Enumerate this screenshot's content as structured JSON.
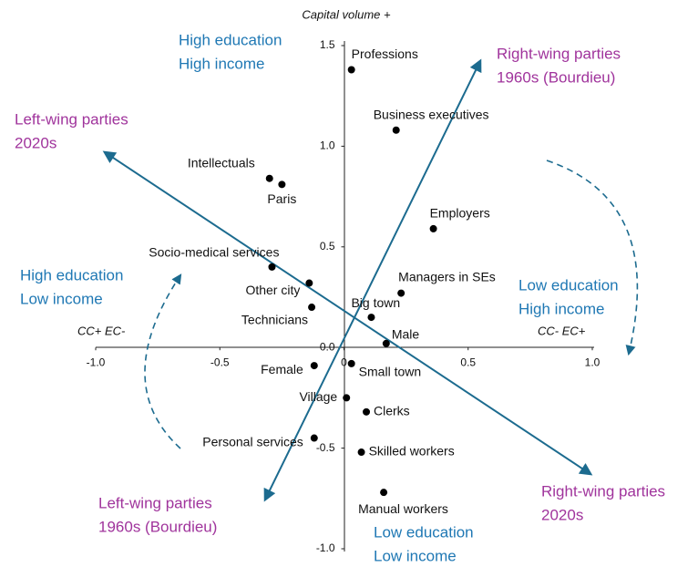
{
  "chart_data": {
    "type": "scatter",
    "y_label": "Capital volume +",
    "x_label_left": "CC+ EC-",
    "x_label_right": "CC- EC+",
    "labels": [
      "Professions",
      "Business executives",
      "Intellectuals",
      "Paris",
      "Employers",
      "Socio-medical services",
      "Other city",
      "Managers in SEs",
      "Technicians",
      "Big town",
      "Male",
      "Female",
      "Small town",
      "Village",
      "Clerks",
      "Personal services",
      "Skilled workers",
      "Manual workers"
    ],
    "x": [
      0.03,
      0.21,
      -0.3,
      -0.25,
      0.36,
      -0.29,
      -0.14,
      0.23,
      -0.13,
      0.11,
      0.17,
      -0.12,
      0.03,
      0.01,
      0.09,
      -0.12,
      0.07,
      0.16
    ],
    "values": [
      1.38,
      1.08,
      0.84,
      0.81,
      0.59,
      0.4,
      0.32,
      0.27,
      0.2,
      0.15,
      0.02,
      -0.09,
      -0.08,
      -0.25,
      -0.32,
      -0.45,
      -0.52,
      -0.72
    ],
    "color": "#000000",
    "xlim": [
      -1.0,
      1.0
    ],
    "ylim": [
      -1.0,
      1.5
    ],
    "xticks": [
      {
        "value": -1,
        "label": "-1.0"
      },
      {
        "value": -0.5,
        "label": "-0.5"
      },
      0,
      0.5,
      {
        "value": 1,
        "label": "1.0"
      }
    ],
    "yticks": [
      {
        "value": -1,
        "label": "-1.0"
      },
      -0.5,
      {
        "value": 0,
        "label": "0.0"
      },
      0.5,
      {
        "value": 1,
        "label": "1.0"
      },
      1.5
    ],
    "annotations": [
      [
        "High education",
        "High income"
      ],
      [
        "High education",
        "Low income"
      ],
      [
        "Low education",
        "High income"
      ],
      [
        "Low education",
        "Low income"
      ],
      [
        "Left-wing parties",
        "2020s"
      ],
      [
        "Right-wing parties",
        "1960s (Bourdieu)"
      ],
      [
        "Left-wing parties",
        "1960s (Bourdieu)"
      ],
      [
        "Right-wing parties",
        "2020s"
      ]
    ]
  }
}
